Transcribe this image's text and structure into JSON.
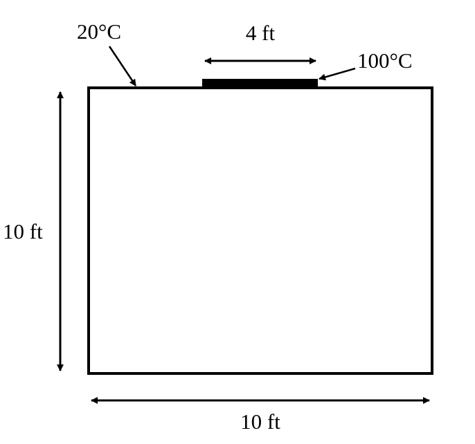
{
  "labels": {
    "top_left_temperature": "20°C",
    "heated_section_width": "4 ft",
    "heated_section_temperature": "100°C",
    "side_height": "10 ft",
    "bottom_width": "10 ft"
  },
  "colors": {
    "stroke": "#000000",
    "background": "#ffffff",
    "heated_strip": "#000000"
  }
}
